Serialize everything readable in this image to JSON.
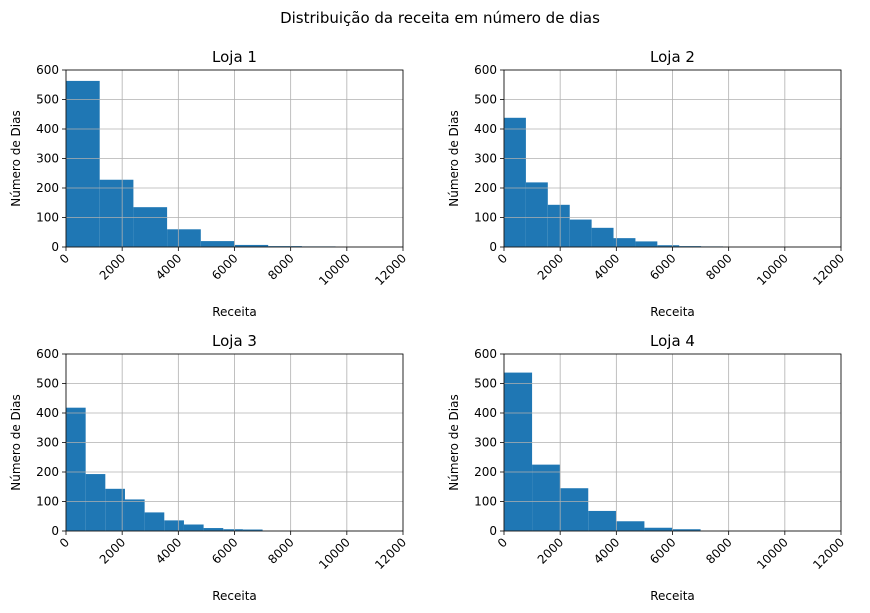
{
  "figure": {
    "suptitle": "Distribuição da receita em número de dias",
    "bar_color": "#1f77b4",
    "grid_color": "#b0b0b0"
  },
  "chart_data": [
    {
      "type": "bar",
      "title": "Loja 1",
      "xlabel": "Receita",
      "ylabel": "Número de Dias",
      "xlim": [
        0,
        12000
      ],
      "ylim": [
        0,
        600
      ],
      "xticks": [
        "0",
        "2000",
        "4000",
        "6000",
        "8000",
        "10000",
        "12000"
      ],
      "yticks": [
        "0",
        "100",
        "200",
        "300",
        "400",
        "500",
        "600"
      ],
      "grid": true,
      "bins": [
        {
          "x0": 0,
          "x1": 1200,
          "value": 563
        },
        {
          "x0": 1200,
          "x1": 2400,
          "value": 228
        },
        {
          "x0": 2400,
          "x1": 3600,
          "value": 135
        },
        {
          "x0": 3600,
          "x1": 4800,
          "value": 60
        },
        {
          "x0": 4800,
          "x1": 6000,
          "value": 20
        },
        {
          "x0": 6000,
          "x1": 7200,
          "value": 7
        },
        {
          "x0": 7200,
          "x1": 8400,
          "value": 3
        },
        {
          "x0": 8400,
          "x1": 9600,
          "value": 2
        }
      ]
    },
    {
      "type": "bar",
      "title": "Loja 2",
      "xlabel": "Receita",
      "ylabel": "Número de Dias",
      "xlim": [
        0,
        12000
      ],
      "ylim": [
        0,
        600
      ],
      "xticks": [
        "0",
        "2000",
        "4000",
        "6000",
        "8000",
        "10000",
        "12000"
      ],
      "yticks": [
        "0",
        "100",
        "200",
        "300",
        "400",
        "500",
        "600"
      ],
      "grid": true,
      "bins": [
        {
          "x0": 0,
          "x1": 780,
          "value": 438
        },
        {
          "x0": 780,
          "x1": 1560,
          "value": 219
        },
        {
          "x0": 1560,
          "x1": 2340,
          "value": 143
        },
        {
          "x0": 2340,
          "x1": 3120,
          "value": 93
        },
        {
          "x0": 3120,
          "x1": 3900,
          "value": 65
        },
        {
          "x0": 3900,
          "x1": 4680,
          "value": 30
        },
        {
          "x0": 4680,
          "x1": 5460,
          "value": 19
        },
        {
          "x0": 5460,
          "x1": 6240,
          "value": 6
        },
        {
          "x0": 6240,
          "x1": 7020,
          "value": 3
        },
        {
          "x0": 7020,
          "x1": 7800,
          "value": 2
        }
      ]
    },
    {
      "type": "bar",
      "title": "Loja 3",
      "xlabel": "Receita",
      "ylabel": "Número de Dias",
      "xlim": [
        0,
        12000
      ],
      "ylim": [
        0,
        600
      ],
      "xticks": [
        "0",
        "2000",
        "4000",
        "6000",
        "8000",
        "10000",
        "12000"
      ],
      "yticks": [
        "0",
        "100",
        "200",
        "300",
        "400",
        "500",
        "600"
      ],
      "grid": true,
      "bins": [
        {
          "x0": 0,
          "x1": 700,
          "value": 418
        },
        {
          "x0": 700,
          "x1": 1400,
          "value": 193
        },
        {
          "x0": 1400,
          "x1": 2100,
          "value": 143
        },
        {
          "x0": 2100,
          "x1": 2800,
          "value": 107
        },
        {
          "x0": 2800,
          "x1": 3500,
          "value": 63
        },
        {
          "x0": 3500,
          "x1": 4200,
          "value": 36
        },
        {
          "x0": 4200,
          "x1": 4900,
          "value": 22
        },
        {
          "x0": 4900,
          "x1": 5600,
          "value": 10
        },
        {
          "x0": 5600,
          "x1": 6300,
          "value": 6
        },
        {
          "x0": 6300,
          "x1": 7000,
          "value": 5
        }
      ]
    },
    {
      "type": "bar",
      "title": "Loja 4",
      "xlabel": "Receita",
      "ylabel": "Número de Dias",
      "xlim": [
        0,
        12000
      ],
      "ylim": [
        0,
        600
      ],
      "xticks": [
        "0",
        "2000",
        "4000",
        "6000",
        "8000",
        "10000",
        "12000"
      ],
      "yticks": [
        "0",
        "100",
        "200",
        "300",
        "400",
        "500",
        "600"
      ],
      "grid": true,
      "bins": [
        {
          "x0": 0,
          "x1": 1000,
          "value": 537
        },
        {
          "x0": 1000,
          "x1": 2000,
          "value": 225
        },
        {
          "x0": 2000,
          "x1": 3000,
          "value": 145
        },
        {
          "x0": 3000,
          "x1": 4000,
          "value": 68
        },
        {
          "x0": 4000,
          "x1": 5000,
          "value": 33
        },
        {
          "x0": 5000,
          "x1": 6000,
          "value": 11
        },
        {
          "x0": 6000,
          "x1": 7000,
          "value": 6
        }
      ]
    }
  ]
}
